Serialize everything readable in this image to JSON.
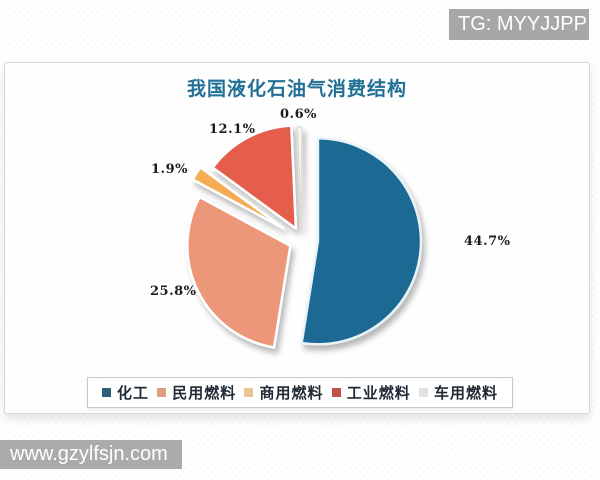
{
  "watermarks": {
    "top_right": "TG: MYYJJPP",
    "bottom_left": "www.gzylfsjn.com"
  },
  "chart_data": {
    "type": "pie",
    "title": "我国液化石油气消费结构",
    "categories": [
      "化工",
      "民用燃料",
      "商用燃料",
      "工业燃料",
      "车用燃料"
    ],
    "values": [
      44.7,
      25.8,
      1.9,
      12.1,
      0.6
    ],
    "labels": [
      "44.7%",
      "25.8%",
      "1.9%",
      "12.1%",
      "0.6%"
    ],
    "colors": [
      "#1e6b94",
      "#ec9779",
      "#f4ad55",
      "#e55d4b",
      "#f6f6f2"
    ],
    "legend_swatch_colors": [
      "#2d5f76",
      "#de9e82",
      "#eac492",
      "#c05048",
      "#e2e2dc"
    ],
    "stroke_colors": [
      "#e8f3f8",
      "#ffffff",
      "#ffffff",
      "#ffffff",
      "#dddcd4"
    ],
    "title_color": "#227096",
    "legend_position": "bottom",
    "start_angle_deg": 0,
    "clockwise": true,
    "exploded": true
  }
}
